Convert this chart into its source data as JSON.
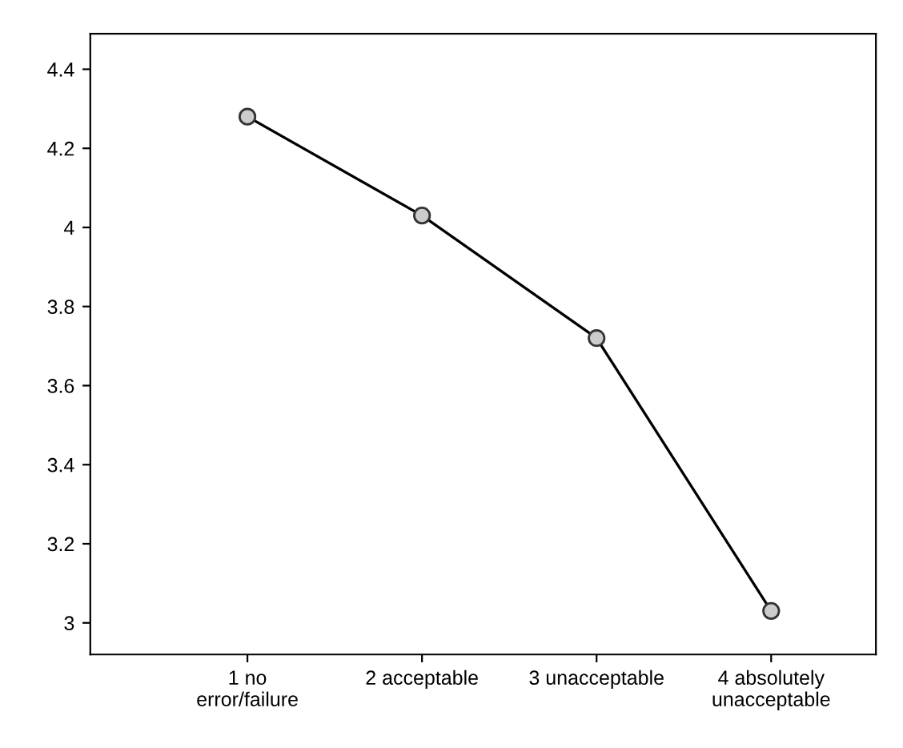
{
  "chart_data": {
    "type": "line",
    "categories": [
      "1 no\nerror/failure",
      "2 acceptable",
      "3 unacceptable",
      "4 absolutely\nunacceptable"
    ],
    "series": [
      {
        "color": "#000000",
        "values": [
          4.28,
          4.03,
          3.72,
          3.03
        ]
      }
    ],
    "ylim": [
      2.92,
      4.49
    ],
    "yticks": [
      3,
      3.2,
      3.4,
      3.6,
      3.8,
      4,
      4.2,
      4.4
    ],
    "marker": "circle",
    "line_style": "solid",
    "grid": false,
    "legend": false
  }
}
